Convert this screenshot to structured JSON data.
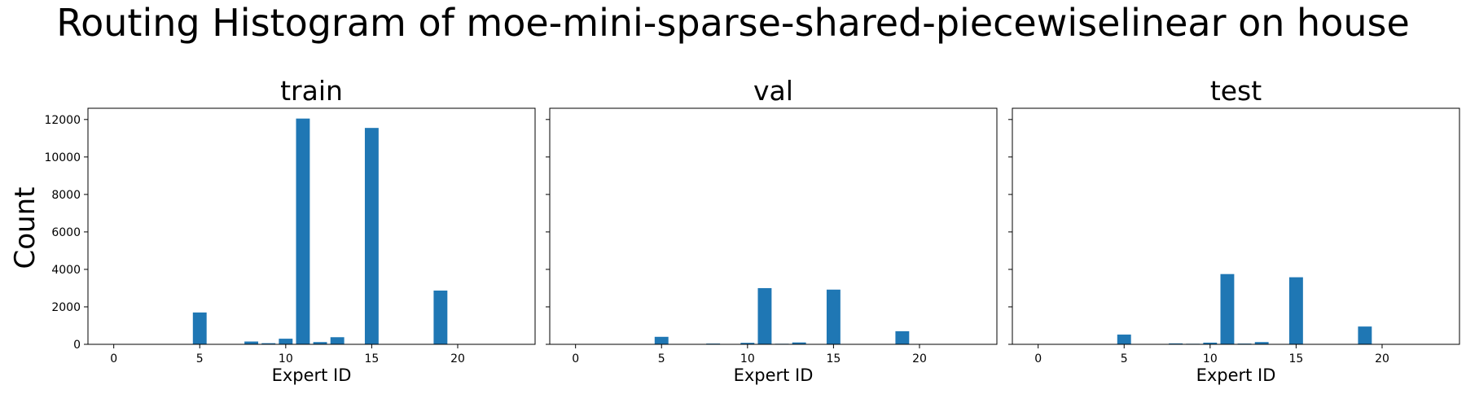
{
  "figure": {
    "title": "Routing Histogram of moe-mini-sparse-shared-piecewiselinear on house",
    "shared_ylabel": "Count"
  },
  "chart_data": [
    {
      "type": "bar",
      "title": "train",
      "xlabel": "Expert ID",
      "ylabel": "Count",
      "xlim": [
        -1.5,
        24.5
      ],
      "ylim": [
        0,
        12600
      ],
      "xticks": [
        0,
        5,
        10,
        15,
        20
      ],
      "yticks": [
        0,
        2000,
        4000,
        6000,
        8000,
        10000,
        12000
      ],
      "bar_color": "#1f77b4",
      "x": [
        5,
        8,
        9,
        10,
        11,
        12,
        13,
        15,
        19
      ],
      "values": [
        1700,
        150,
        60,
        300,
        12050,
        120,
        380,
        11550,
        2870
      ]
    },
    {
      "type": "bar",
      "title": "val",
      "xlabel": "Expert ID",
      "ylabel": "Count",
      "xlim": [
        -1.5,
        24.5
      ],
      "ylim": [
        0,
        12600
      ],
      "xticks": [
        0,
        5,
        10,
        15,
        20
      ],
      "yticks": [
        0,
        2000,
        4000,
        6000,
        8000,
        10000,
        12000
      ],
      "bar_color": "#1f77b4",
      "x": [
        5,
        8,
        9,
        10,
        11,
        12,
        13,
        15,
        19
      ],
      "values": [
        400,
        40,
        20,
        80,
        3000,
        30,
        100,
        2920,
        700
      ]
    },
    {
      "type": "bar",
      "title": "test",
      "xlabel": "Expert ID",
      "ylabel": "Count",
      "xlim": [
        -1.5,
        24.5
      ],
      "ylim": [
        0,
        12600
      ],
      "xticks": [
        0,
        5,
        10,
        15,
        20
      ],
      "yticks": [
        0,
        2000,
        4000,
        6000,
        8000,
        10000,
        12000
      ],
      "bar_color": "#1f77b4",
      "x": [
        5,
        8,
        9,
        10,
        11,
        12,
        13,
        15,
        19
      ],
      "values": [
        520,
        50,
        30,
        90,
        3750,
        40,
        120,
        3580,
        950
      ]
    }
  ]
}
